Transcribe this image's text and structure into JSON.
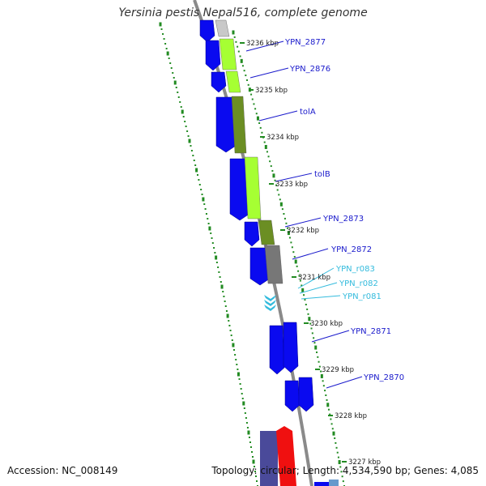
{
  "title": "Yersinia pestis Nepal516, complete genome",
  "footer": {
    "accession": "Accession: NC_008149",
    "topology": "Topology: circular; Length: 4,534,590 bp; Genes: 4,085"
  },
  "colors": {
    "forward_gene": "#0a0af0",
    "label_gene": "#1a1acc",
    "label_rna": "#33bbdd",
    "backbone": "#888888",
    "tick_dots": "#228b22",
    "cog_light_green": "#a6ff33",
    "cog_olive": "#6b8e23",
    "cog_gray": "#777777",
    "cog_light_gray": "#c8c8c8"
  },
  "ruler_labels": [
    "3236 kbp",
    "3235 kbp",
    "3234 kbp",
    "3233 kbp",
    "3232 kbp",
    "3231 kbp",
    "3230 kbp",
    "3229 kbp",
    "3228 kbp",
    "3227 kbp"
  ],
  "gene_labels": [
    "YPN_2877",
    "YPN_2876",
    "tolA",
    "tolB",
    "YPN_2873",
    "YPN_2872",
    "YPN_2871",
    "YPN_2870"
  ],
  "rna_labels": [
    "YPN_r083",
    "YPN_r082",
    "YPN_r081"
  ]
}
